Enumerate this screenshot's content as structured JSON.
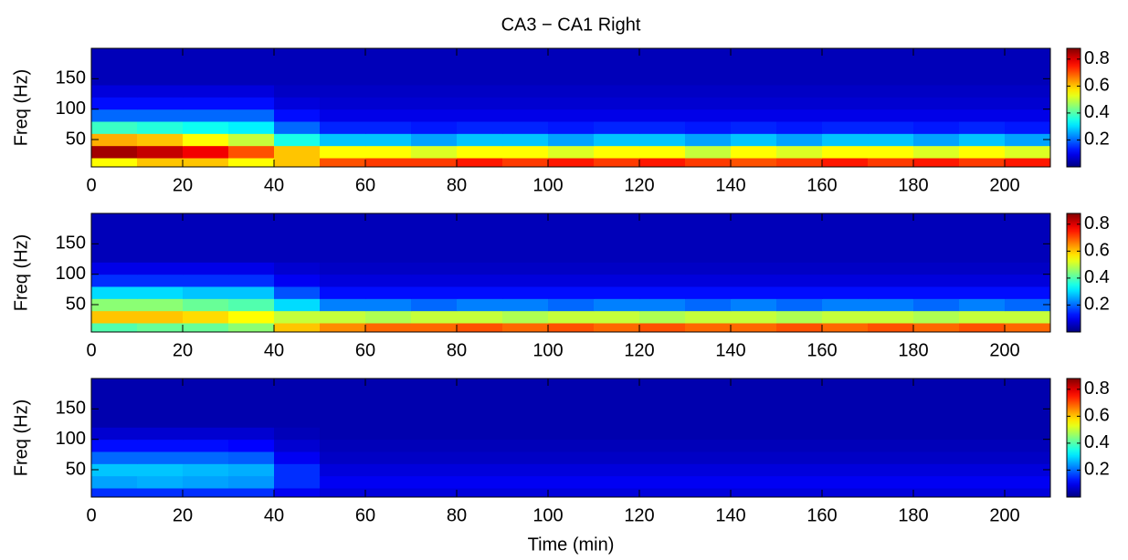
{
  "chart_data": [
    {
      "type": "heatmap",
      "title": "CA3 − CA1 Right",
      "ylabel": "Freq (Hz)",
      "colormap": "jet",
      "x": [
        5,
        15,
        25,
        35,
        45,
        55,
        65,
        75,
        85,
        95,
        105,
        115,
        125,
        135,
        145,
        155,
        165,
        175,
        185,
        195,
        205
      ],
      "y": [
        10,
        30,
        50,
        70,
        90,
        110,
        130,
        150,
        170,
        190
      ],
      "values": [
        [
          0.55,
          0.6,
          0.6,
          0.55,
          0.6,
          0.7,
          0.72,
          0.72,
          0.75,
          0.72,
          0.75,
          0.72,
          0.75,
          0.72,
          0.7,
          0.72,
          0.75,
          0.72,
          0.75,
          0.72,
          0.75
        ],
        [
          0.85,
          0.82,
          0.78,
          0.7,
          0.6,
          0.55,
          0.55,
          0.52,
          0.55,
          0.55,
          0.52,
          0.55,
          0.55,
          0.5,
          0.55,
          0.52,
          0.55,
          0.55,
          0.52,
          0.55,
          0.52
        ],
        [
          0.62,
          0.6,
          0.55,
          0.5,
          0.35,
          0.28,
          0.28,
          0.25,
          0.28,
          0.28,
          0.25,
          0.28,
          0.28,
          0.25,
          0.28,
          0.25,
          0.28,
          0.28,
          0.25,
          0.28,
          0.25
        ],
        [
          0.38,
          0.36,
          0.34,
          0.32,
          0.2,
          0.14,
          0.14,
          0.13,
          0.14,
          0.14,
          0.13,
          0.14,
          0.14,
          0.13,
          0.14,
          0.13,
          0.14,
          0.14,
          0.13,
          0.14,
          0.13
        ],
        [
          0.2,
          0.2,
          0.2,
          0.2,
          0.12,
          0.09,
          0.09,
          0.09,
          0.09,
          0.09,
          0.09,
          0.09,
          0.09,
          0.09,
          0.09,
          0.09,
          0.09,
          0.09,
          0.09,
          0.09,
          0.09
        ],
        [
          0.12,
          0.12,
          0.12,
          0.12,
          0.08,
          0.07,
          0.07,
          0.07,
          0.07,
          0.07,
          0.07,
          0.07,
          0.07,
          0.07,
          0.07,
          0.07,
          0.07,
          0.07,
          0.07,
          0.07,
          0.07
        ],
        [
          0.08,
          0.08,
          0.08,
          0.08,
          0.06,
          0.06,
          0.06,
          0.06,
          0.06,
          0.06,
          0.06,
          0.06,
          0.06,
          0.06,
          0.06,
          0.06,
          0.06,
          0.06,
          0.06,
          0.06,
          0.06
        ],
        [
          0.05,
          0.05,
          0.05,
          0.05,
          0.05,
          0.05,
          0.05,
          0.05,
          0.05,
          0.05,
          0.05,
          0.05,
          0.05,
          0.05,
          0.05,
          0.05,
          0.05,
          0.05,
          0.05,
          0.05,
          0.05
        ],
        [
          0.05,
          0.05,
          0.05,
          0.05,
          0.05,
          0.05,
          0.05,
          0.05,
          0.05,
          0.05,
          0.05,
          0.05,
          0.05,
          0.05,
          0.05,
          0.05,
          0.05,
          0.05,
          0.05,
          0.05,
          0.05
        ],
        [
          0.05,
          0.05,
          0.05,
          0.05,
          0.05,
          0.05,
          0.05,
          0.05,
          0.05,
          0.05,
          0.05,
          0.05,
          0.05,
          0.05,
          0.05,
          0.05,
          0.05,
          0.05,
          0.05,
          0.05,
          0.05
        ]
      ],
      "xlim": [
        0,
        210
      ],
      "xticks": [
        0,
        20,
        40,
        60,
        80,
        100,
        120,
        140,
        160,
        180,
        200
      ],
      "ylim": [
        5,
        200
      ],
      "yticks": [
        50,
        100,
        150
      ],
      "clim": [
        0,
        0.88
      ],
      "cticks": [
        0.2,
        0.4,
        0.6,
        0.8
      ]
    },
    {
      "type": "heatmap",
      "ylabel": "Freq (Hz)",
      "colormap": "jet",
      "x": [
        5,
        15,
        25,
        35,
        45,
        55,
        65,
        75,
        85,
        95,
        105,
        115,
        125,
        135,
        145,
        155,
        165,
        175,
        185,
        195,
        205
      ],
      "y": [
        10,
        30,
        50,
        70,
        90,
        110,
        130,
        150,
        170,
        190
      ],
      "values": [
        [
          0.4,
          0.42,
          0.42,
          0.45,
          0.6,
          0.65,
          0.68,
          0.68,
          0.7,
          0.68,
          0.7,
          0.68,
          0.7,
          0.68,
          0.68,
          0.7,
          0.68,
          0.7,
          0.68,
          0.7,
          0.68
        ],
        [
          0.6,
          0.6,
          0.58,
          0.55,
          0.5,
          0.5,
          0.48,
          0.5,
          0.5,
          0.48,
          0.5,
          0.5,
          0.48,
          0.5,
          0.5,
          0.48,
          0.5,
          0.5,
          0.48,
          0.5,
          0.5
        ],
        [
          0.45,
          0.45,
          0.42,
          0.4,
          0.3,
          0.22,
          0.22,
          0.2,
          0.22,
          0.22,
          0.2,
          0.22,
          0.22,
          0.2,
          0.22,
          0.2,
          0.22,
          0.22,
          0.2,
          0.22,
          0.2
        ],
        [
          0.3,
          0.3,
          0.28,
          0.28,
          0.18,
          0.12,
          0.12,
          0.12,
          0.12,
          0.12,
          0.12,
          0.12,
          0.12,
          0.12,
          0.12,
          0.12,
          0.12,
          0.12,
          0.12,
          0.12,
          0.12
        ],
        [
          0.15,
          0.15,
          0.15,
          0.15,
          0.1,
          0.08,
          0.08,
          0.08,
          0.08,
          0.08,
          0.08,
          0.08,
          0.08,
          0.08,
          0.08,
          0.08,
          0.08,
          0.08,
          0.08,
          0.08,
          0.08
        ],
        [
          0.09,
          0.09,
          0.09,
          0.09,
          0.07,
          0.06,
          0.06,
          0.06,
          0.06,
          0.06,
          0.06,
          0.06,
          0.06,
          0.06,
          0.06,
          0.06,
          0.06,
          0.06,
          0.06,
          0.06,
          0.06
        ],
        [
          0.05,
          0.05,
          0.05,
          0.05,
          0.05,
          0.05,
          0.05,
          0.05,
          0.05,
          0.05,
          0.05,
          0.05,
          0.05,
          0.05,
          0.05,
          0.05,
          0.05,
          0.05,
          0.05,
          0.05,
          0.05
        ],
        [
          0.05,
          0.05,
          0.05,
          0.05,
          0.05,
          0.05,
          0.05,
          0.05,
          0.05,
          0.05,
          0.05,
          0.05,
          0.05,
          0.05,
          0.05,
          0.05,
          0.05,
          0.05,
          0.05,
          0.05,
          0.05
        ],
        [
          0.05,
          0.05,
          0.05,
          0.05,
          0.05,
          0.05,
          0.05,
          0.05,
          0.05,
          0.05,
          0.05,
          0.05,
          0.05,
          0.05,
          0.05,
          0.05,
          0.05,
          0.05,
          0.05,
          0.05,
          0.05
        ],
        [
          0.05,
          0.05,
          0.05,
          0.05,
          0.05,
          0.05,
          0.05,
          0.05,
          0.05,
          0.05,
          0.05,
          0.05,
          0.05,
          0.05,
          0.05,
          0.05,
          0.05,
          0.05,
          0.05,
          0.05,
          0.05
        ]
      ],
      "xlim": [
        0,
        210
      ],
      "xticks": [
        0,
        20,
        40,
        60,
        80,
        100,
        120,
        140,
        160,
        180,
        200
      ],
      "ylim": [
        5,
        200
      ],
      "yticks": [
        50,
        100,
        150
      ],
      "clim": [
        0,
        0.88
      ],
      "cticks": [
        0.2,
        0.4,
        0.6,
        0.8
      ]
    },
    {
      "type": "heatmap",
      "ylabel": "Freq (Hz)",
      "xlabel": "Time (min)",
      "colormap": "jet",
      "x": [
        5,
        15,
        25,
        35,
        45,
        55,
        65,
        75,
        85,
        95,
        105,
        115,
        125,
        135,
        145,
        155,
        165,
        175,
        185,
        195,
        205
      ],
      "y": [
        10,
        30,
        50,
        70,
        90,
        110,
        130,
        150,
        170,
        190
      ],
      "values": [
        [
          0.15,
          0.15,
          0.15,
          0.15,
          0.1,
          0.08,
          0.08,
          0.08,
          0.08,
          0.08,
          0.08,
          0.08,
          0.08,
          0.08,
          0.08,
          0.08,
          0.08,
          0.08,
          0.08,
          0.08,
          0.08
        ],
        [
          0.25,
          0.26,
          0.25,
          0.24,
          0.15,
          0.1,
          0.1,
          0.1,
          0.1,
          0.1,
          0.1,
          0.1,
          0.1,
          0.1,
          0.1,
          0.1,
          0.1,
          0.1,
          0.1,
          0.1,
          0.1
        ],
        [
          0.28,
          0.28,
          0.27,
          0.26,
          0.15,
          0.08,
          0.08,
          0.08,
          0.08,
          0.08,
          0.08,
          0.08,
          0.08,
          0.08,
          0.08,
          0.08,
          0.08,
          0.08,
          0.08,
          0.08,
          0.08
        ],
        [
          0.2,
          0.2,
          0.2,
          0.19,
          0.1,
          0.06,
          0.06,
          0.06,
          0.06,
          0.06,
          0.06,
          0.06,
          0.06,
          0.06,
          0.06,
          0.06,
          0.06,
          0.06,
          0.06,
          0.06,
          0.06
        ],
        [
          0.12,
          0.12,
          0.12,
          0.11,
          0.07,
          0.05,
          0.05,
          0.05,
          0.05,
          0.05,
          0.05,
          0.05,
          0.05,
          0.05,
          0.05,
          0.05,
          0.05,
          0.05,
          0.05,
          0.05,
          0.05
        ],
        [
          0.07,
          0.07,
          0.07,
          0.07,
          0.05,
          0.04,
          0.04,
          0.04,
          0.04,
          0.04,
          0.04,
          0.04,
          0.04,
          0.04,
          0.04,
          0.04,
          0.04,
          0.04,
          0.04,
          0.04,
          0.04
        ],
        [
          0.04,
          0.04,
          0.04,
          0.04,
          0.04,
          0.04,
          0.04,
          0.04,
          0.04,
          0.04,
          0.04,
          0.04,
          0.04,
          0.04,
          0.04,
          0.04,
          0.04,
          0.04,
          0.04,
          0.04,
          0.04
        ],
        [
          0.04,
          0.04,
          0.04,
          0.04,
          0.04,
          0.04,
          0.04,
          0.04,
          0.04,
          0.04,
          0.04,
          0.04,
          0.04,
          0.04,
          0.04,
          0.04,
          0.04,
          0.04,
          0.04,
          0.04,
          0.04
        ],
        [
          0.04,
          0.04,
          0.04,
          0.04,
          0.04,
          0.04,
          0.04,
          0.04,
          0.04,
          0.04,
          0.04,
          0.04,
          0.04,
          0.04,
          0.04,
          0.04,
          0.04,
          0.04,
          0.04,
          0.04,
          0.04
        ],
        [
          0.04,
          0.04,
          0.04,
          0.04,
          0.04,
          0.04,
          0.04,
          0.04,
          0.04,
          0.04,
          0.04,
          0.04,
          0.04,
          0.04,
          0.04,
          0.04,
          0.04,
          0.04,
          0.04,
          0.04,
          0.04
        ]
      ],
      "xlim": [
        0,
        210
      ],
      "xticks": [
        0,
        20,
        40,
        60,
        80,
        100,
        120,
        140,
        160,
        180,
        200
      ],
      "ylim": [
        5,
        200
      ],
      "yticks": [
        50,
        100,
        150
      ],
      "clim": [
        0,
        0.88
      ],
      "cticks": [
        0.2,
        0.4,
        0.6,
        0.8
      ]
    }
  ]
}
